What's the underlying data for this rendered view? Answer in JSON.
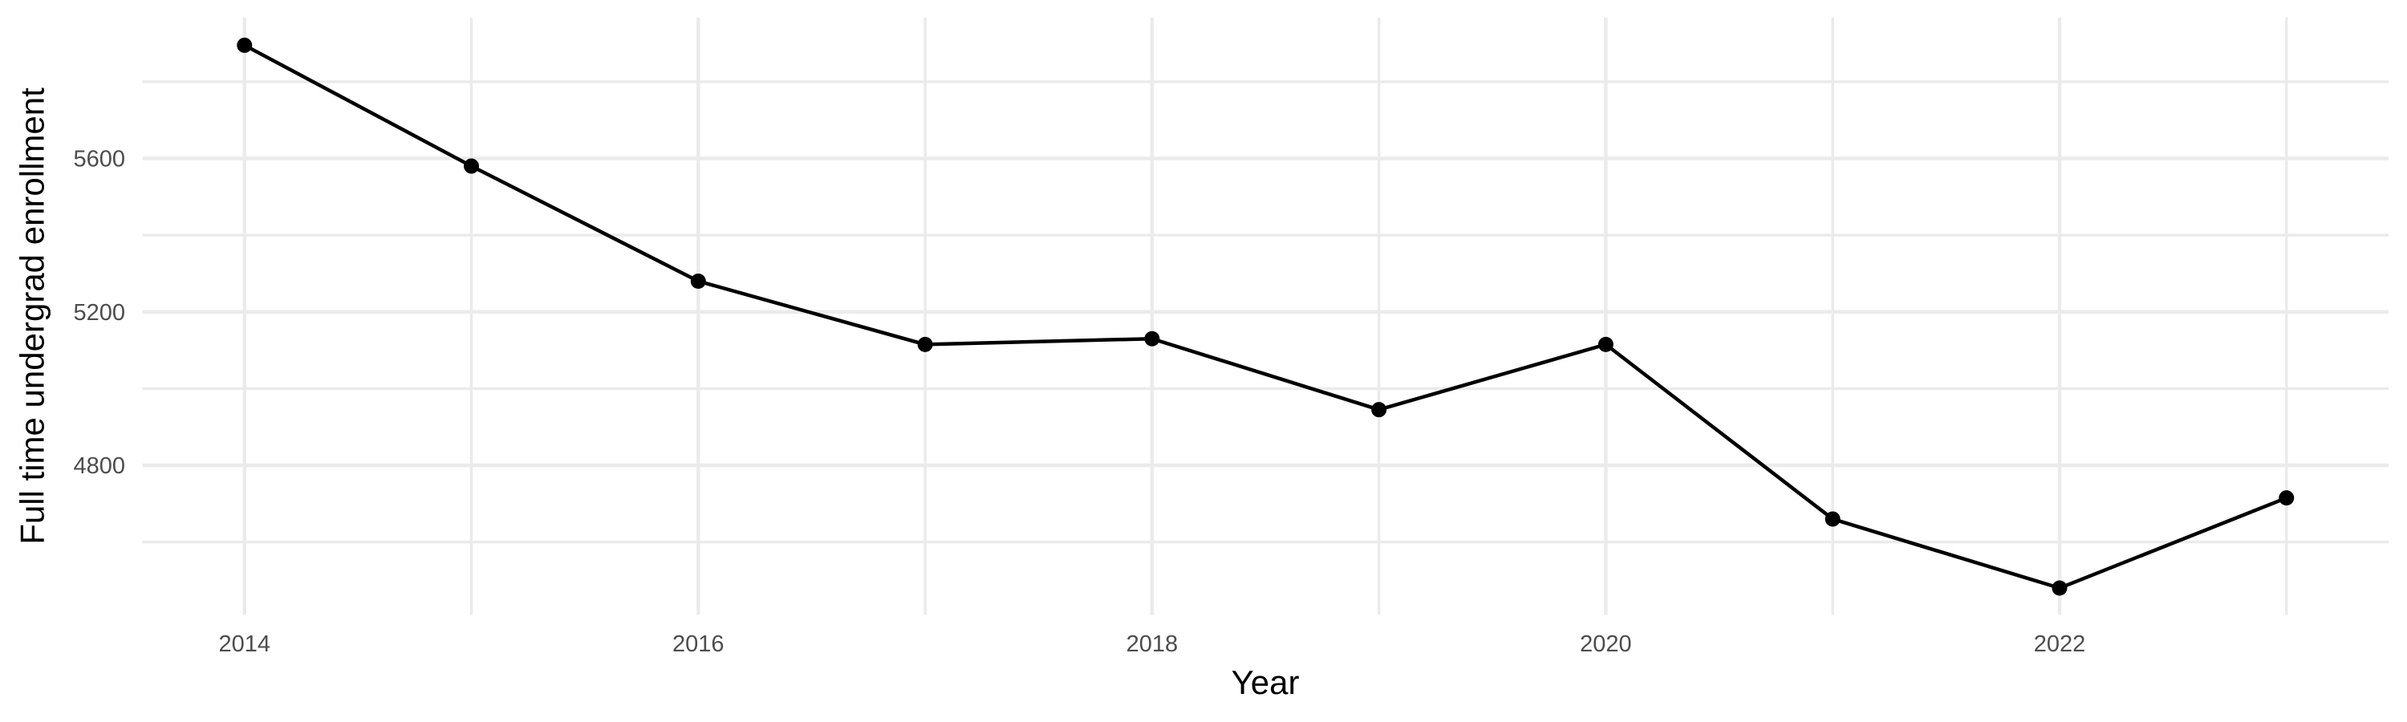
{
  "chart_data": {
    "type": "line",
    "title": "",
    "xlabel": "Year",
    "ylabel": "Full time undergrad enrollment",
    "x": [
      2014,
      2015,
      2016,
      2017,
      2018,
      2019,
      2020,
      2021,
      2022,
      2023
    ],
    "series": [
      {
        "name": "Full time undergrad enrollment",
        "values": [
          5895,
          5580,
          5280,
          5115,
          5130,
          4945,
          5115,
          4660,
          4480,
          4715
        ]
      }
    ],
    "x_tick_labels": [
      "2014",
      "2016",
      "2018",
      "2020",
      "2022"
    ],
    "x_major_ticks": [
      2014,
      2016,
      2018,
      2020,
      2022
    ],
    "x_minor_ticks": [
      2015,
      2017,
      2019,
      2021,
      2023
    ],
    "y_tick_labels": [
      "4800",
      "5200",
      "5600"
    ],
    "y_major_ticks": [
      4800,
      5200,
      5600
    ],
    "y_minor_ticks": [
      4600,
      5000,
      5400,
      5800
    ],
    "xlim": [
      2013.55,
      2023.45
    ],
    "ylim": [
      4410,
      5967
    ],
    "grid": true,
    "legend": false,
    "marker": "point",
    "colors": {
      "line": "#000000",
      "point": "#000000",
      "grid": "#EBEBEB",
      "tick_label": "#4D4D4D",
      "axis_title": "#000000",
      "background": "#FFFFFF"
    }
  }
}
